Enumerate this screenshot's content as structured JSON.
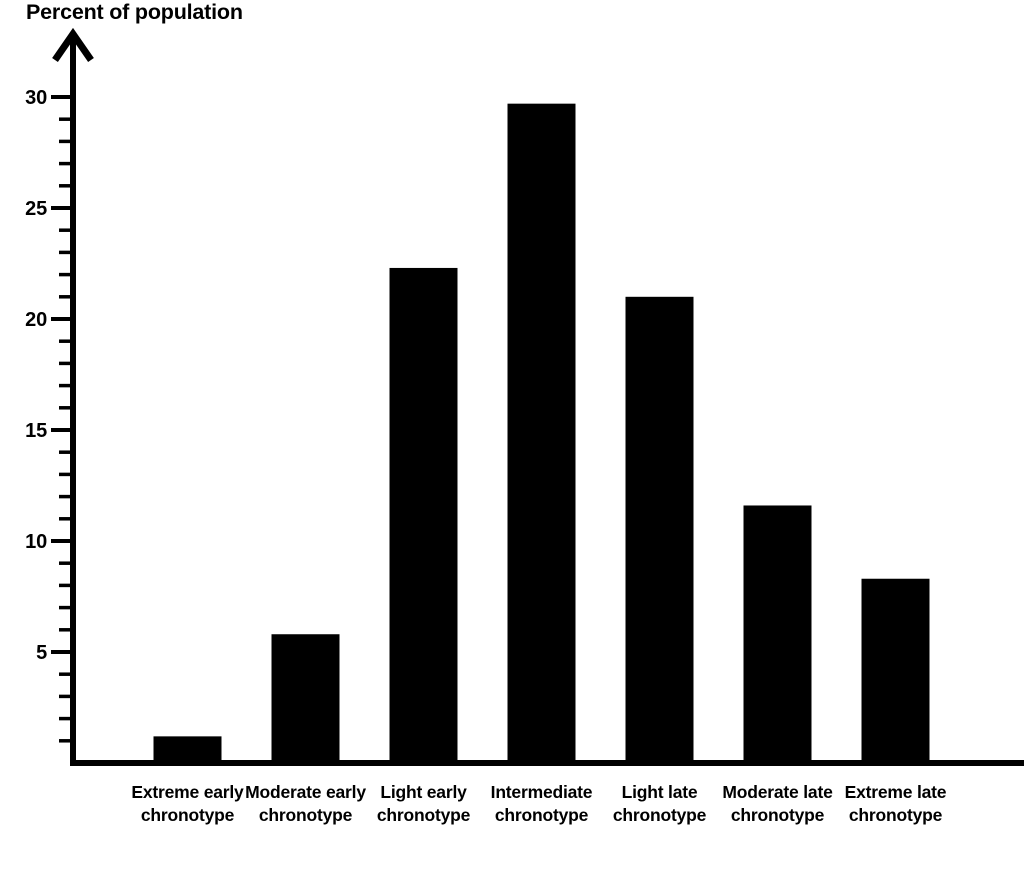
{
  "title": "Percent of population",
  "colors": {
    "foreground": "#000000",
    "background": "#ffffff",
    "bar": "#000000"
  },
  "chart_data": {
    "type": "bar",
    "title": "Percent of population",
    "ylabel": "Percent of population",
    "xlabel": "",
    "categories": [
      "Extreme early\nchronotype",
      "Moderate early\nchronotype",
      "Light early\nchronotype",
      "Intermediate\nchronotype",
      "Light late\nchronotype",
      "Moderate late\nchronotype",
      "Extreme late\nchronotype"
    ],
    "values": [
      1.2,
      5.8,
      22.3,
      29.7,
      21.0,
      11.6,
      8.3
    ],
    "ylim": [
      0,
      31
    ],
    "yticks_major": [
      5,
      10,
      15,
      20,
      25,
      30
    ],
    "ytick_minor_step": 1,
    "grid": false,
    "legend": null
  }
}
